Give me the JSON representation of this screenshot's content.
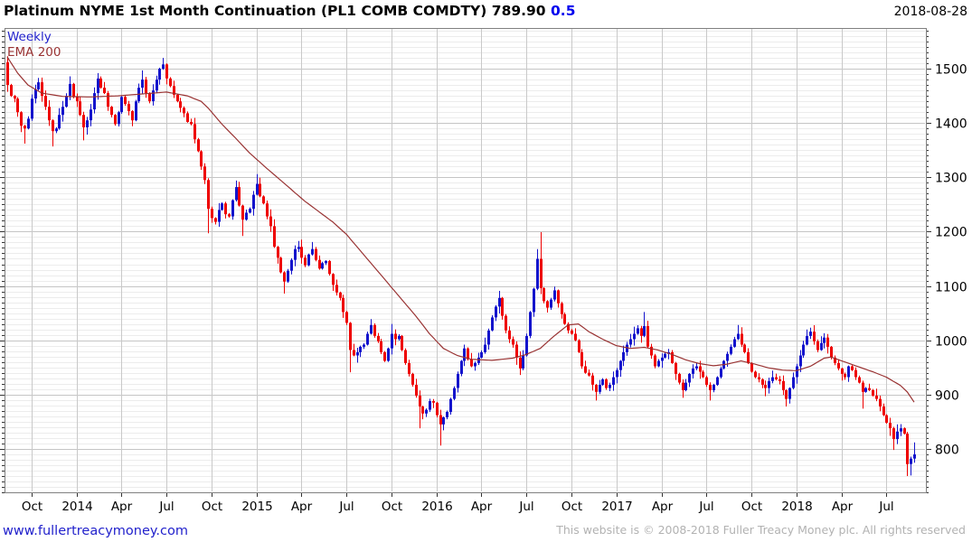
{
  "header": {
    "title": "Platinum NYME 1st Month Continuation (PL1 COMB COMDTY)",
    "last_price": "789.90",
    "change": "0.5",
    "date": "2018-08-28"
  },
  "chart": {
    "timeframe_label": "Weekly",
    "indicator_label": "EMA 200"
  },
  "footer": {
    "site_link": "www.fullertreacymoney.com",
    "copyright": "This website is © 2008-2018 Fuller Treacy Money plc. All rights reserved"
  },
  "chart_data": {
    "type": "candlestick",
    "instrument": "PL1 COMB COMDTY",
    "title": "Platinum NYME 1st Month Continuation (PL1 COMB COMDTY)",
    "timeframe": "Weekly",
    "indicator": "EMA 200",
    "last_price": 789.9,
    "change": 0.5,
    "as_of": "2018-08-28",
    "x_axis": {
      "start_week": "2013-08-19",
      "tick_months": [
        1,
        4,
        7,
        10
      ],
      "tick_labels": [
        "Oct",
        "2014",
        "Apr",
        "Jul",
        "Oct",
        "2015",
        "Apr",
        "Jul",
        "Oct",
        "2016",
        "Apr",
        "Jul",
        "Oct",
        "2017",
        "Apr",
        "Jul",
        "Oct",
        "2018",
        "Apr",
        "Jul"
      ]
    },
    "y_axis": {
      "min": 720,
      "max": 1575,
      "minor_step": 10,
      "major_step": 100,
      "tick_labels": [
        800,
        900,
        1000,
        1100,
        1200,
        1300,
        1400,
        1500
      ]
    },
    "first_open": 1512,
    "closes": [
      1470,
      1450,
      1445,
      1420,
      1395,
      1390,
      1408,
      1445,
      1462,
      1475,
      1450,
      1430,
      1405,
      1385,
      1390,
      1415,
      1430,
      1450,
      1472,
      1448,
      1440,
      1415,
      1392,
      1405,
      1425,
      1455,
      1482,
      1465,
      1455,
      1430,
      1415,
      1398,
      1420,
      1448,
      1435,
      1422,
      1405,
      1440,
      1465,
      1480,
      1455,
      1440,
      1460,
      1480,
      1500,
      1508,
      1482,
      1468,
      1452,
      1440,
      1428,
      1418,
      1402,
      1398,
      1370,
      1348,
      1320,
      1295,
      1242,
      1225,
      1218,
      1240,
      1252,
      1232,
      1228,
      1258,
      1282,
      1248,
      1222,
      1235,
      1242,
      1268,
      1288,
      1265,
      1252,
      1228,
      1210,
      1172,
      1152,
      1125,
      1108,
      1128,
      1148,
      1168,
      1172,
      1152,
      1138,
      1158,
      1168,
      1148,
      1132,
      1142,
      1146,
      1122,
      1102,
      1088,
      1078,
      1052,
      1032,
      982,
      972,
      978,
      988,
      992,
      1012,
      1028,
      1008,
      998,
      978,
      962,
      985,
      1012,
      1002,
      1008,
      982,
      958,
      938,
      918,
      898,
      878,
      865,
      872,
      888,
      885,
      862,
      845,
      858,
      868,
      892,
      912,
      938,
      962,
      985,
      965,
      952,
      958,
      968,
      978,
      992,
      1018,
      1042,
      1062,
      1078,
      1045,
      1018,
      1002,
      992,
      968,
      948,
      972,
      1008,
      1052,
      1095,
      1150,
      1096,
      1072,
      1060,
      1075,
      1092,
      1068,
      1048,
      1030,
      1018,
      1012,
      1000,
      978,
      952,
      940,
      935,
      918,
      905,
      918,
      928,
      912,
      918,
      932,
      945,
      962,
      978,
      992,
      1002,
      1012,
      1022,
      1008,
      1026,
      988,
      972,
      952,
      962,
      968,
      975,
      978,
      958,
      938,
      922,
      908,
      922,
      938,
      948,
      952,
      942,
      932,
      918,
      908,
      918,
      932,
      948,
      962,
      975,
      988,
      1002,
      1012,
      992,
      978,
      958,
      942,
      932,
      928,
      918,
      912,
      925,
      932,
      928,
      925,
      908,
      892,
      912,
      932,
      952,
      972,
      992,
      1008,
      1016,
      998,
      982,
      995,
      1005,
      988,
      968,
      958,
      948,
      938,
      932,
      952,
      945,
      932,
      922,
      905,
      912,
      908,
      898,
      892,
      878,
      862,
      848,
      838,
      818,
      832,
      838,
      828,
      772,
      782,
      789.9
    ],
    "high_overrides": {
      "0": 1523,
      "9": 1483,
      "18": 1486,
      "26": 1492,
      "39": 1497,
      "45": 1520,
      "66": 1294,
      "72": 1306,
      "84": 1183,
      "88": 1181,
      "105": 1039,
      "111": 1030,
      "132": 992,
      "142": 1091,
      "153": 1168,
      "154": 1199,
      "158": 1099,
      "184": 1052,
      "191": 984,
      "211": 1028,
      "232": 1023,
      "236": 1013,
      "262": 812
    },
    "low_overrides": {
      "5": 1362,
      "13": 1357,
      "22": 1368,
      "58": 1197,
      "68": 1192,
      "80": 1086,
      "99": 941,
      "119": 838,
      "125": 806,
      "148": 936,
      "154": 1085,
      "170": 889,
      "195": 894,
      "203": 889,
      "219": 897,
      "225": 878,
      "247": 874,
      "255": 824,
      "256": 798,
      "260": 750,
      "261": 751
    },
    "ema_anchors": [
      [
        0,
        1522
      ],
      [
        3,
        1492
      ],
      [
        6,
        1470
      ],
      [
        10,
        1455
      ],
      [
        16,
        1449
      ],
      [
        24,
        1448
      ],
      [
        32,
        1450
      ],
      [
        40,
        1454
      ],
      [
        46,
        1457
      ],
      [
        52,
        1450
      ],
      [
        56,
        1440
      ],
      [
        58,
        1428
      ],
      [
        62,
        1398
      ],
      [
        66,
        1372
      ],
      [
        70,
        1345
      ],
      [
        74,
        1322
      ],
      [
        78,
        1300
      ],
      [
        82,
        1278
      ],
      [
        86,
        1256
      ],
      [
        90,
        1237
      ],
      [
        94,
        1218
      ],
      [
        98,
        1195
      ],
      [
        102,
        1165
      ],
      [
        106,
        1135
      ],
      [
        110,
        1105
      ],
      [
        114,
        1075
      ],
      [
        118,
        1045
      ],
      [
        122,
        1012
      ],
      [
        126,
        985
      ],
      [
        130,
        972
      ],
      [
        134,
        965
      ],
      [
        140,
        963
      ],
      [
        146,
        967
      ],
      [
        150,
        974
      ],
      [
        154,
        985
      ],
      [
        158,
        1008
      ],
      [
        162,
        1028
      ],
      [
        165,
        1030
      ],
      [
        168,
        1016
      ],
      [
        172,
        1002
      ],
      [
        176,
        990
      ],
      [
        180,
        985
      ],
      [
        184,
        987
      ],
      [
        188,
        982
      ],
      [
        192,
        974
      ],
      [
        196,
        964
      ],
      [
        200,
        957
      ],
      [
        204,
        953
      ],
      [
        208,
        956
      ],
      [
        212,
        962
      ],
      [
        216,
        956
      ],
      [
        220,
        949
      ],
      [
        224,
        945
      ],
      [
        228,
        944
      ],
      [
        232,
        952
      ],
      [
        236,
        967
      ],
      [
        238,
        969
      ],
      [
        242,
        960
      ],
      [
        246,
        951
      ],
      [
        250,
        942
      ],
      [
        254,
        932
      ],
      [
        258,
        917
      ],
      [
        260,
        905
      ],
      [
        262,
        886
      ]
    ],
    "colors": {
      "up": "#1414cc",
      "down": "#ee0000",
      "ema": "#993333",
      "grid_minor": "#ececec",
      "grid_major": "#c5c5c5",
      "border": "#808080",
      "tick": "#333333",
      "timeframe_label": "#2222cc",
      "indicator_label": "#993333",
      "change": "#0000ee",
      "link": "#2222cc",
      "copyright": "#b2b2b2"
    }
  }
}
